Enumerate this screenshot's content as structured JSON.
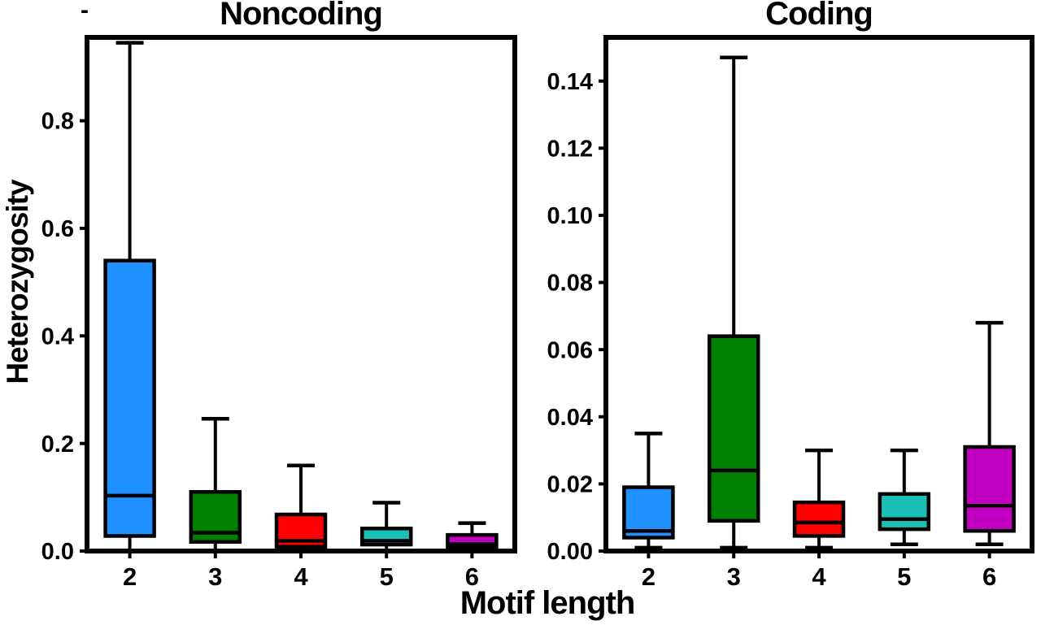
{
  "figure": {
    "background": "#FFFFFF",
    "text_color": "#000000",
    "ylabel": "Heterozygosity",
    "xlabel": "Motif length",
    "stray_mark": "-"
  },
  "chart_data": [
    {
      "type": "box",
      "title": "Noncoding",
      "xlabel": "Motif length",
      "ylabel": "Heterozygosity",
      "categories": [
        "2",
        "3",
        "4",
        "5",
        "6"
      ],
      "ylim": [
        0,
        0.955
      ],
      "yticks": {
        "values": [
          0.0,
          0.2,
          0.4,
          0.6,
          0.8
        ],
        "labels": [
          "0.0",
          "0.2",
          "0.4",
          "0.6",
          "0.8"
        ]
      },
      "grid": false,
      "legend": false,
      "series": [
        {
          "category": "2",
          "color": "#1E90FF",
          "whislo": 0.0,
          "q1": 0.028,
          "med": 0.103,
          "q3": 0.54,
          "whishi": 0.945
        },
        {
          "category": "3",
          "color": "#008000",
          "whislo": 0.0,
          "q1": 0.017,
          "med": 0.034,
          "q3": 0.11,
          "whishi": 0.246
        },
        {
          "category": "4",
          "color": "#FF0000",
          "whislo": 0.0,
          "q1": 0.008,
          "med": 0.019,
          "q3": 0.068,
          "whishi": 0.159
        },
        {
          "category": "5",
          "color": "#1BBFB4",
          "whislo": 0.0,
          "q1": 0.012,
          "med": 0.019,
          "q3": 0.042,
          "whishi": 0.09
        },
        {
          "category": "6",
          "color": "#C200C2",
          "whislo": 0.0,
          "q1": 0.007,
          "med": 0.013,
          "q3": 0.03,
          "whishi": 0.052
        }
      ]
    },
    {
      "type": "box",
      "title": "Coding",
      "xlabel": "Motif length",
      "ylabel": "Heterozygosity",
      "categories": [
        "2",
        "3",
        "4",
        "5",
        "6"
      ],
      "ylim": [
        0,
        0.153
      ],
      "yticks": {
        "values": [
          0.0,
          0.02,
          0.04,
          0.06,
          0.08,
          0.1,
          0.12,
          0.14
        ],
        "labels": [
          "0.00",
          "0.02",
          "0.04",
          "0.06",
          "0.08",
          "0.10",
          "0.12",
          "0.14"
        ]
      },
      "grid": false,
      "legend": false,
      "series": [
        {
          "category": "2",
          "color": "#1E90FF",
          "whislo": 0.001,
          "q1": 0.004,
          "med": 0.006,
          "q3": 0.019,
          "whishi": 0.035
        },
        {
          "category": "3",
          "color": "#008000",
          "whislo": 0.001,
          "q1": 0.009,
          "med": 0.024,
          "q3": 0.064,
          "whishi": 0.147
        },
        {
          "category": "4",
          "color": "#FF0000",
          "whislo": 0.001,
          "q1": 0.0045,
          "med": 0.0085,
          "q3": 0.0145,
          "whishi": 0.03
        },
        {
          "category": "5",
          "color": "#1BBFB4",
          "whislo": 0.002,
          "q1": 0.0065,
          "med": 0.0095,
          "q3": 0.017,
          "whishi": 0.03
        },
        {
          "category": "6",
          "color": "#C200C2",
          "whislo": 0.002,
          "q1": 0.006,
          "med": 0.0135,
          "q3": 0.031,
          "whishi": 0.068
        }
      ]
    }
  ]
}
